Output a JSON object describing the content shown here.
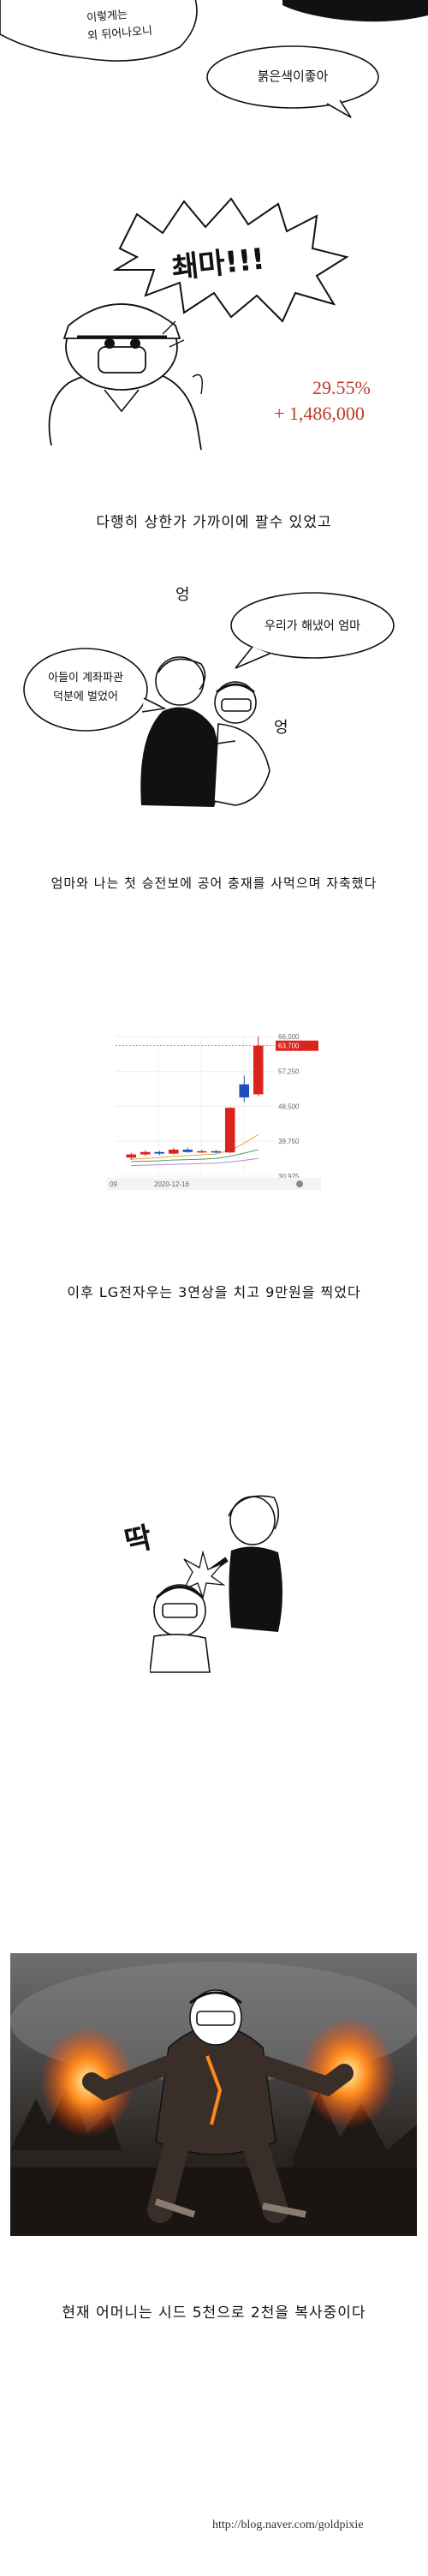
{
  "panel1": {
    "bubble_top_line1": "이렇게는",
    "bubble_top_line2": "외 뒤어나오니",
    "bubble_red": "붉은색이좋아"
  },
  "panel2": {
    "shout": "쵀마!!!",
    "pct": "29.55%",
    "amount": "+ 1,486,000"
  },
  "caption1": "다행히 상한가 가까이에 팔수 있었고",
  "panel3": {
    "sound_left": "엉",
    "sound_right": "엉",
    "bubble_left_line1": "아들이 계좌파관",
    "bubble_left_line2": "덕분에 벌었어",
    "bubble_right": "우리가 해냈어 엄마"
  },
  "caption2": "엄마와 나는 첫 승전보에 공어 충재를 사먹으며 자축했다",
  "chart_data": {
    "type": "candlestick",
    "x_start_label": "09",
    "x_label": "2020-12-16",
    "y_ticks": [
      66000,
      57250,
      48500,
      39750,
      30925
    ],
    "y_tick_labels": [
      "66,000",
      "57,250",
      "48,500",
      "39,750",
      "30,925"
    ],
    "current_price_label": "63,700",
    "ylim": [
      30925,
      66000
    ],
    "candles": [
      {
        "open": 35600,
        "close": 36400,
        "high": 36800,
        "low": 35000,
        "color": "#d9231c"
      },
      {
        "open": 36400,
        "close": 37000,
        "high": 37400,
        "low": 36000,
        "color": "#d9231c"
      },
      {
        "open": 37000,
        "close": 36600,
        "high": 37300,
        "low": 36200,
        "color": "#1f4fbf"
      },
      {
        "open": 36600,
        "close": 37600,
        "high": 38000,
        "low": 36400,
        "color": "#d9231c"
      },
      {
        "open": 37600,
        "close": 37000,
        "high": 38100,
        "low": 36800,
        "color": "#1f4fbf"
      },
      {
        "open": 37000,
        "close": 37200,
        "high": 37600,
        "low": 36800,
        "color": "#d9231c"
      },
      {
        "open": 37200,
        "close": 36900,
        "high": 37500,
        "low": 36700,
        "color": "#1f4fbf"
      },
      {
        "open": 36900,
        "close": 48100,
        "high": 48300,
        "low": 36700,
        "color": "#d9231c"
      },
      {
        "open": 54000,
        "close": 50700,
        "high": 56200,
        "low": 49500,
        "color": "#1f4fbf"
      },
      {
        "open": 51500,
        "close": 63700,
        "high": 66000,
        "low": 51000,
        "color": "#d9231c"
      }
    ],
    "moving_averages": [
      {
        "color": "#e8a33c",
        "values": [
          35200,
          35400,
          35600,
          35900,
          36100,
          36300,
          36500,
          37400,
          39200,
          41400
        ]
      },
      {
        "color": "#4aa35a",
        "values": [
          34600,
          34700,
          34800,
          35000,
          35100,
          35200,
          35400,
          35900,
          36700,
          37600
        ]
      },
      {
        "color": "#b08bd1",
        "values": [
          33600,
          33700,
          33800,
          33900,
          34000,
          34100,
          34200,
          34500,
          34900,
          35400
        ]
      }
    ]
  },
  "caption3": "이후 LG전자우는 3연상을 치고 9만원을 찍었다",
  "panel5": {
    "sfx": "딱"
  },
  "caption4": "현재 어머니는 시드 5천으로 2천을 복사중이다",
  "footer_url": "http://blog.naver.com/goldpixie"
}
